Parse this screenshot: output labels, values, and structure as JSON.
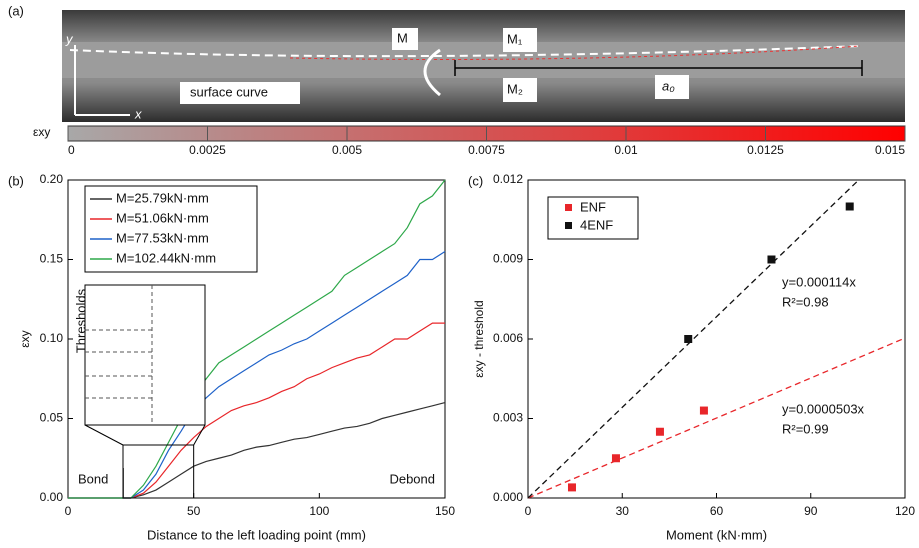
{
  "panel_a": {
    "label": "(a)",
    "annotations": {
      "m": "M",
      "m1": "M₁",
      "m2": "M₂",
      "surface": "surface curve",
      "a0": "a₀",
      "x": "x",
      "y": "y"
    },
    "colorbar": {
      "label": "εxy",
      "lim": [
        0,
        0.015
      ],
      "ticks": [
        0,
        0.0025,
        0.005,
        0.0075,
        0.01,
        0.0125,
        0.015
      ],
      "colors": [
        "#a8a8a8",
        "#ff0000"
      ]
    }
  },
  "chart_data": [
    {
      "type": "line",
      "label": "(b)",
      "xlabel": "Distance to the left loading point (mm)",
      "ylabel": "εxy",
      "annotations": {
        "bond": "Bond",
        "debond": "Debond",
        "thresholds": "Thresholds"
      },
      "xlim": [
        0,
        150
      ],
      "xticks": [
        0,
        50,
        100,
        150
      ],
      "ylim": [
        0,
        0.2
      ],
      "yticks": [
        {
          "value": 0,
          "label": "0.00"
        },
        0.05,
        {
          "value": 0.1,
          "label": "0.10"
        },
        0.15,
        {
          "value": 0.2,
          "label": "0.20"
        }
      ],
      "x": [
        0,
        5,
        10,
        15,
        20,
        25,
        30,
        35,
        40,
        45,
        50,
        55,
        60,
        65,
        70,
        75,
        80,
        85,
        90,
        95,
        100,
        105,
        110,
        115,
        120,
        125,
        130,
        135,
        140,
        145,
        150
      ],
      "series": [
        {
          "name": "M=25.79kN·mm",
          "color": "#333333",
          "values": [
            0,
            0,
            0,
            0,
            0,
            0,
            0.002,
            0.005,
            0.01,
            0.015,
            0.02,
            0.023,
            0.025,
            0.027,
            0.03,
            0.032,
            0.033,
            0.035,
            0.037,
            0.038,
            0.04,
            0.042,
            0.044,
            0.045,
            0.047,
            0.05,
            0.052,
            0.054,
            0.056,
            0.058,
            0.06
          ]
        },
        {
          "name": "M=51.06kN·mm",
          "color": "#e8262a",
          "values": [
            0,
            0,
            0,
            0,
            0,
            0,
            0.003,
            0.01,
            0.02,
            0.03,
            0.038,
            0.045,
            0.05,
            0.055,
            0.058,
            0.06,
            0.063,
            0.067,
            0.07,
            0.075,
            0.078,
            0.082,
            0.085,
            0.088,
            0.09,
            0.095,
            0.1,
            0.1,
            0.105,
            0.11,
            0.11
          ]
        },
        {
          "name": "M=77.53kN·mm",
          "color": "#1f62c9",
          "values": [
            0,
            0,
            0,
            0,
            0,
            0,
            0.005,
            0.015,
            0.03,
            0.042,
            0.055,
            0.063,
            0.07,
            0.075,
            0.08,
            0.085,
            0.09,
            0.093,
            0.097,
            0.1,
            0.105,
            0.11,
            0.115,
            0.12,
            0.125,
            0.13,
            0.135,
            0.14,
            0.15,
            0.15,
            0.155
          ]
        },
        {
          "name": "M=102.44kN·mm",
          "color": "#2ea84a",
          "values": [
            0,
            0,
            0,
            0,
            0,
            0,
            0.008,
            0.02,
            0.035,
            0.05,
            0.065,
            0.075,
            0.085,
            0.09,
            0.095,
            0.1,
            0.105,
            0.11,
            0.115,
            0.12,
            0.125,
            0.13,
            0.14,
            0.145,
            0.15,
            0.155,
            0.16,
            0.17,
            0.185,
            0.19,
            0.2
          ]
        }
      ]
    },
    {
      "type": "scatter",
      "label": "(c)",
      "xlabel": "Moment (kN·mm)",
      "ylabel": "εxy - threshold",
      "xlim": [
        0,
        120
      ],
      "xticks": [
        0,
        30,
        60,
        90,
        120
      ],
      "ylim": [
        0,
        0.012
      ],
      "yticks": [
        {
          "value": 0,
          "label": "0.000"
        },
        0.003,
        0.006,
        0.009,
        0.012
      ],
      "series": [
        {
          "name": "ENF",
          "color": "#e8262a",
          "x": [
            14,
            28,
            42,
            56
          ],
          "values": [
            0.0004,
            0.0015,
            0.0025,
            0.0033
          ],
          "fit": {
            "slope": 5.03e-05,
            "equation": "y=0.0000503x",
            "r2": "R²=0.99"
          }
        },
        {
          "name": "4ENF",
          "color": "#111111",
          "x": [
            51,
            77.5,
            102.4
          ],
          "values": [
            0.006,
            0.009,
            0.011
          ],
          "fit": {
            "slope": 0.000114,
            "equation": "y=0.000114x",
            "r2": "R²=0.98"
          }
        }
      ]
    }
  ]
}
